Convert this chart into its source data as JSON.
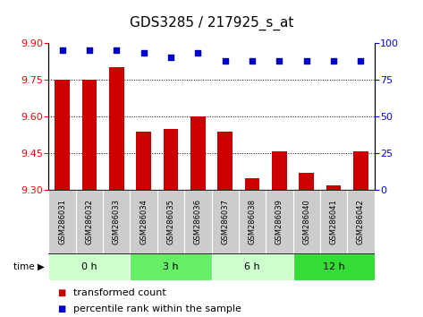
{
  "title": "GDS3285 / 217925_s_at",
  "samples": [
    "GSM286031",
    "GSM286032",
    "GSM286033",
    "GSM286034",
    "GSM286035",
    "GSM286036",
    "GSM286037",
    "GSM286038",
    "GSM286039",
    "GSM286040",
    "GSM286041",
    "GSM286042"
  ],
  "transformed_counts": [
    9.75,
    9.75,
    9.8,
    9.54,
    9.55,
    9.6,
    9.54,
    9.35,
    9.46,
    9.37,
    9.32,
    9.46
  ],
  "percentile_ranks": [
    95,
    95,
    95,
    93,
    90,
    93,
    88,
    88,
    88,
    88,
    88,
    88
  ],
  "ylim_left": [
    9.3,
    9.9
  ],
  "ylim_right": [
    0,
    100
  ],
  "yticks_left": [
    9.3,
    9.45,
    9.6,
    9.75,
    9.9
  ],
  "yticks_right": [
    0,
    25,
    50,
    75,
    100
  ],
  "bar_color": "#cc0000",
  "dot_color": "#0000cc",
  "bar_bottom": 9.3,
  "groups": [
    {
      "label": "0 h",
      "start": 0,
      "end": 2
    },
    {
      "label": "3 h",
      "start": 3,
      "end": 5
    },
    {
      "label": "6 h",
      "start": 6,
      "end": 8
    },
    {
      "label": "12 h",
      "start": 9,
      "end": 11
    }
  ],
  "group_colors": [
    "#ccffcc",
    "#66ee66",
    "#ccffcc",
    "#33dd33"
  ],
  "group_boundaries": [
    -0.5,
    2.5,
    5.5,
    8.5,
    11.5
  ],
  "time_label": "time",
  "legend_bar_label": "transformed count",
  "legend_dot_label": "percentile rank within the sample",
  "background_plot": "#ffffff",
  "sample_box_color": "#cccccc",
  "title_fontsize": 11,
  "tick_fontsize": 8,
  "sample_fontsize": 6,
  "group_fontsize": 8,
  "legend_fontsize": 8
}
